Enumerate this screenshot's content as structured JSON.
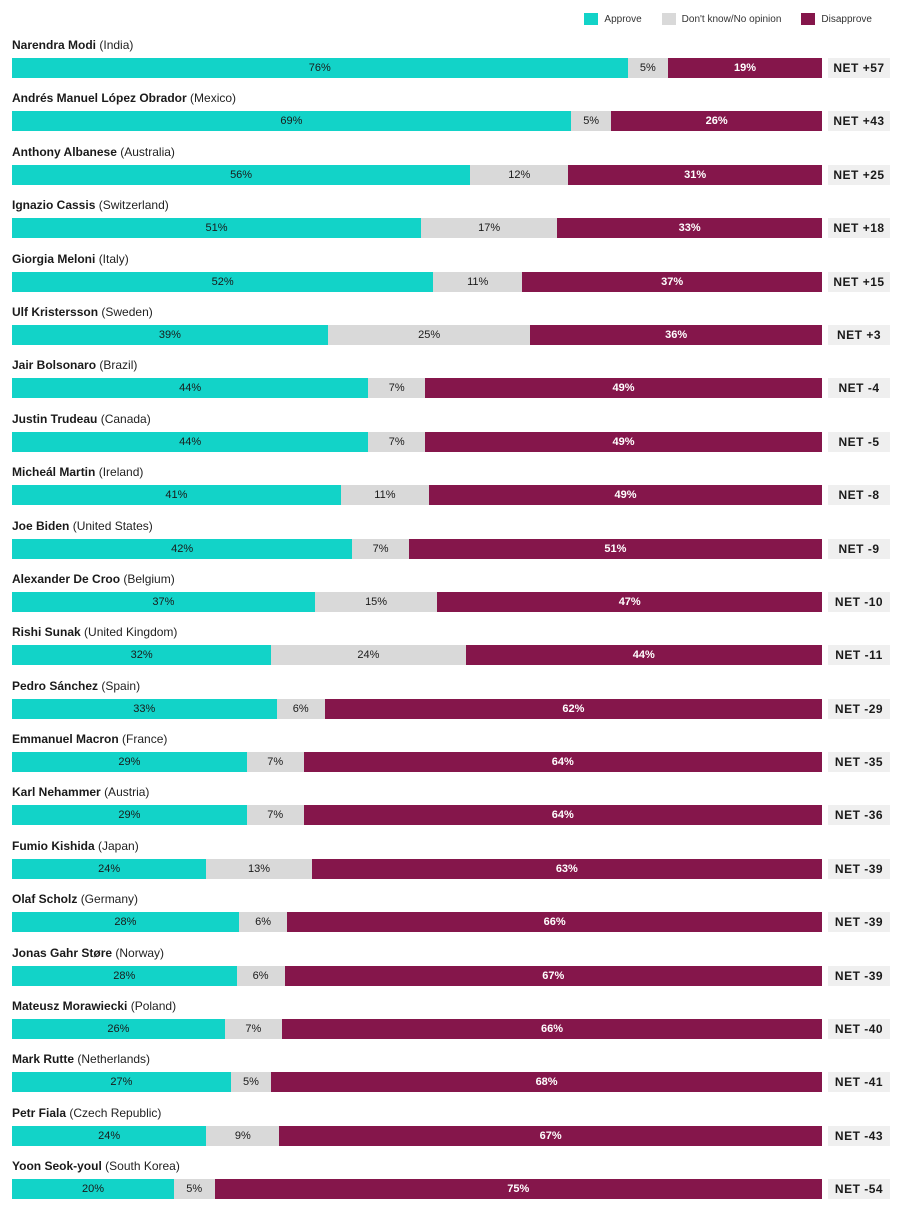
{
  "colors": {
    "approve": "#12d3c8",
    "dk": "#d9d9d9",
    "disapprove": "#85164b"
  },
  "chart_data": {
    "type": "bar",
    "orientation": "horizontal",
    "stacked": true,
    "title": "",
    "legend": {
      "position": "top-right",
      "entries": [
        "Approve",
        "Don't know/No opinion",
        "Disapprove"
      ]
    },
    "rows": [
      {
        "leader": "Narendra Modi",
        "country": "(India)",
        "approve": 76,
        "dk": 5,
        "disapprove": 19,
        "net": "NET +57"
      },
      {
        "leader": "Andrés Manuel López Obrador",
        "country": "(Mexico)",
        "approve": 69,
        "dk": 5,
        "disapprove": 26,
        "net": "NET +43"
      },
      {
        "leader": "Anthony Albanese",
        "country": "(Australia)",
        "approve": 56,
        "dk": 12,
        "disapprove": 31,
        "net": "NET +25"
      },
      {
        "leader": "Ignazio Cassis",
        "country": "(Switzerland)",
        "approve": 51,
        "dk": 17,
        "disapprove": 33,
        "net": "NET +18"
      },
      {
        "leader": "Giorgia Meloni",
        "country": "(Italy)",
        "approve": 52,
        "dk": 11,
        "disapprove": 37,
        "net": "NET +15"
      },
      {
        "leader": "Ulf Kristersson",
        "country": "(Sweden)",
        "approve": 39,
        "dk": 25,
        "disapprove": 36,
        "net": "NET +3"
      },
      {
        "leader": "Jair Bolsonaro",
        "country": "(Brazil)",
        "approve": 44,
        "dk": 7,
        "disapprove": 49,
        "net": "NET -4"
      },
      {
        "leader": "Justin Trudeau",
        "country": "(Canada)",
        "approve": 44,
        "dk": 7,
        "disapprove": 49,
        "net": "NET -5"
      },
      {
        "leader": "Micheál Martin",
        "country": "(Ireland)",
        "approve": 41,
        "dk": 11,
        "disapprove": 49,
        "net": "NET -8"
      },
      {
        "leader": "Joe Biden",
        "country": "(United States)",
        "approve": 42,
        "dk": 7,
        "disapprove": 51,
        "net": "NET -9"
      },
      {
        "leader": "Alexander De Croo",
        "country": "(Belgium)",
        "approve": 37,
        "dk": 15,
        "disapprove": 47,
        "net": "NET -10"
      },
      {
        "leader": "Rishi Sunak",
        "country": "(United Kingdom)",
        "approve": 32,
        "dk": 24,
        "disapprove": 44,
        "net": "NET -11"
      },
      {
        "leader": "Pedro Sánchez",
        "country": "(Spain)",
        "approve": 33,
        "dk": 6,
        "disapprove": 62,
        "net": "NET -29"
      },
      {
        "leader": "Emmanuel Macron",
        "country": "(France)",
        "approve": 29,
        "dk": 7,
        "disapprove": 64,
        "net": "NET -35"
      },
      {
        "leader": "Karl Nehammer",
        "country": "(Austria)",
        "approve": 29,
        "dk": 7,
        "disapprove": 64,
        "net": "NET -36"
      },
      {
        "leader": "Fumio Kishida",
        "country": "(Japan)",
        "approve": 24,
        "dk": 13,
        "disapprove": 63,
        "net": "NET -39"
      },
      {
        "leader": "Olaf Scholz",
        "country": "(Germany)",
        "approve": 28,
        "dk": 6,
        "disapprove": 66,
        "net": "NET -39"
      },
      {
        "leader": "Jonas Gahr Støre",
        "country": "(Norway)",
        "approve": 28,
        "dk": 6,
        "disapprove": 67,
        "net": "NET -39"
      },
      {
        "leader": "Mateusz Morawiecki",
        "country": "(Poland)",
        "approve": 26,
        "dk": 7,
        "disapprove": 66,
        "net": "NET -40"
      },
      {
        "leader": "Mark Rutte",
        "country": "(Netherlands)",
        "approve": 27,
        "dk": 5,
        "disapprove": 68,
        "net": "NET -41"
      },
      {
        "leader": "Petr Fiala",
        "country": "(Czech Republic)",
        "approve": 24,
        "dk": 9,
        "disapprove": 67,
        "net": "NET -43"
      },
      {
        "leader": "Yoon Seok-youl",
        "country": "(South Korea)",
        "approve": 20,
        "dk": 5,
        "disapprove": 75,
        "net": "NET -54"
      }
    ]
  }
}
